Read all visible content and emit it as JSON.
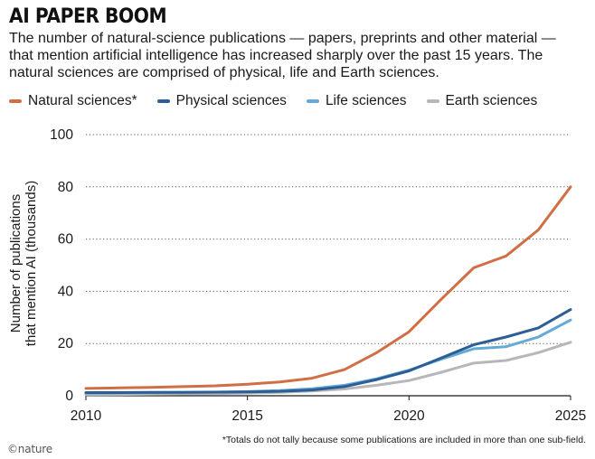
{
  "header": {
    "title": "AI PAPER BOOM",
    "subtitle": "The number of natural-science publications — papers, preprints and other material — that mention artificial intelligence has increased sharply over the past 15 years. The natural sciences are comprised of physical, life and Earth sciences."
  },
  "footnote": "*Totals do not tally because some publications are included in more than one sub-field.",
  "brand": "©nature",
  "chart_data": {
    "type": "line",
    "title": "AI PAPER BOOM",
    "ylabel": "Number of publications that mention AI (thousands)",
    "ylabel_lines": [
      "Number of publications",
      "that mention AI (thousands)"
    ],
    "xlabel": "",
    "ylim": [
      0,
      100
    ],
    "xlim": [
      2010,
      2025
    ],
    "yticks": [
      0,
      20,
      40,
      60,
      80,
      100
    ],
    "xticks": [
      2010,
      2015,
      2020,
      2025
    ],
    "grid": "horizontal dotted",
    "x": [
      2010,
      2011,
      2012,
      2013,
      2014,
      2015,
      2016,
      2017,
      2018,
      2019,
      2020,
      2021,
      2022,
      2023,
      2024,
      2025
    ],
    "series": [
      {
        "name": "Natural sciences*",
        "color": "#d06f45",
        "values": [
          2.8,
          3.0,
          3.2,
          3.5,
          3.8,
          4.4,
          5.3,
          6.7,
          10.0,
          16.5,
          24.5,
          37.0,
          49.0,
          53.5,
          63.5,
          80.0
        ]
      },
      {
        "name": "Physical sciences",
        "color": "#2c5e96",
        "values": [
          1.2,
          1.2,
          1.3,
          1.3,
          1.4,
          1.5,
          1.7,
          2.2,
          3.5,
          6.2,
          9.5,
          14.5,
          19.5,
          22.5,
          26.0,
          33.0
        ]
      },
      {
        "name": "Life sciences",
        "color": "#65a9d8",
        "values": [
          1.0,
          1.1,
          1.2,
          1.3,
          1.4,
          1.6,
          2.0,
          2.7,
          4.0,
          6.5,
          9.8,
          14.0,
          18.0,
          18.8,
          22.5,
          29.0
        ]
      },
      {
        "name": "Earth sciences",
        "color": "#b7b7bb",
        "values": [
          0.4,
          0.5,
          0.6,
          0.7,
          0.8,
          1.0,
          1.3,
          1.8,
          2.6,
          4.0,
          5.8,
          9.0,
          12.5,
          13.5,
          16.5,
          20.5
        ]
      }
    ]
  }
}
